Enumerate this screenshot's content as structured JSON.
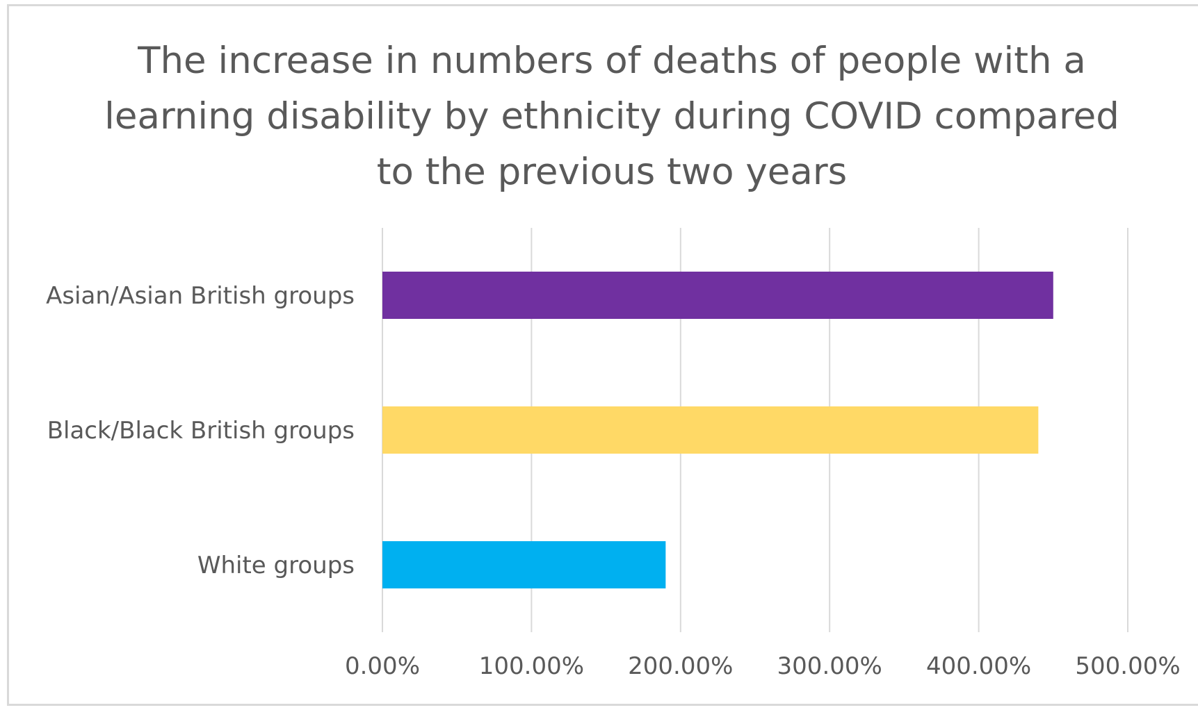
{
  "chart_data": {
    "type": "bar",
    "orientation": "horizontal",
    "title": "The increase in numbers of deaths of people with a learning disability by ethnicity during COVID compared to the previous two years",
    "categories": [
      "Asian/Asian British groups",
      "Black/Black British groups",
      "White groups"
    ],
    "values": [
      450,
      440,
      190
    ],
    "value_unit": "%",
    "colors": [
      "#7030a0",
      "#ffd966",
      "#00b0f0"
    ],
    "xlim": [
      0,
      500
    ],
    "x_ticks": [
      "0.00%",
      "100.00%",
      "200.00%",
      "300.00%",
      "400.00%",
      "500.00%"
    ],
    "xlabel": "",
    "ylabel": "",
    "grid": "vertical",
    "legend": "none"
  }
}
